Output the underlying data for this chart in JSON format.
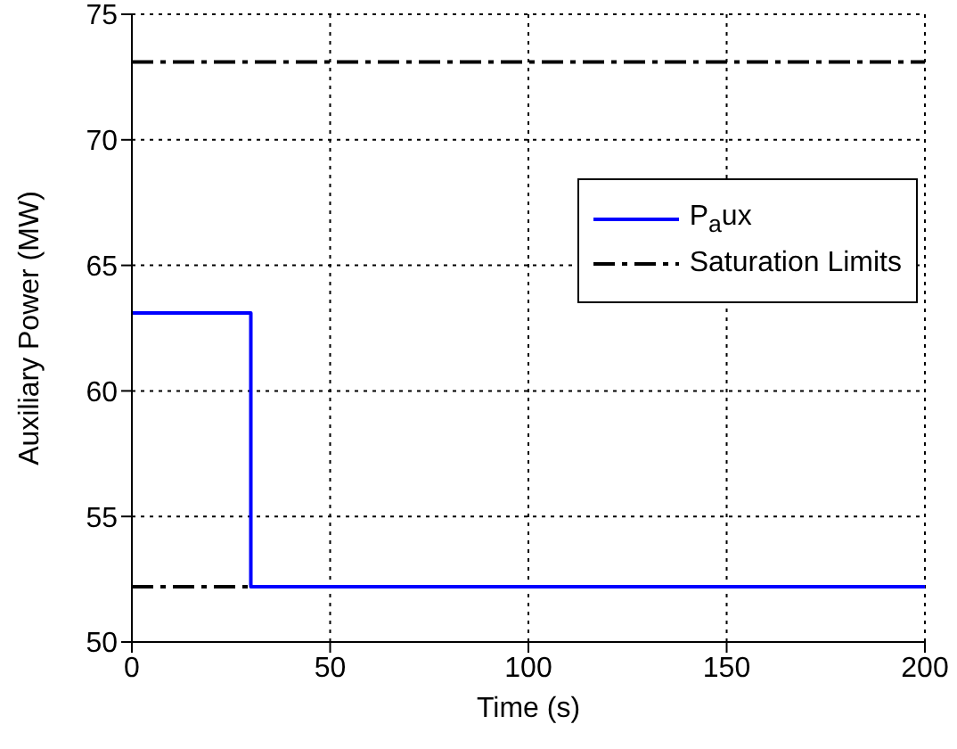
{
  "chart_data": {
    "type": "line",
    "xlabel": "Time (s)",
    "ylabel": "Auxiliary Power (MW)",
    "xlim": [
      0,
      200
    ],
    "xticks": [
      0,
      50,
      100,
      150,
      200
    ],
    "ylim": [
      50,
      75
    ],
    "yticks": [
      50,
      55,
      60,
      65,
      70,
      75
    ],
    "grid": true,
    "legend": "top right",
    "marker": "none",
    "series": [
      {
        "name": "P$_{a}$ux",
        "color": "#0000ff",
        "x": [
          0,
          30,
          30,
          200
        ],
        "values": [
          63.1,
          63.1,
          52.2,
          52.2
        ]
      }
    ],
    "ref_lines": [
      {
        "axis": "y",
        "value": 73.1,
        "label": "Saturation Limits",
        "color": "#000000",
        "line_style": "dashed"
      },
      {
        "axis": "y",
        "value": 52.2,
        "label": null,
        "color": "#000000",
        "line_style": "dashed"
      }
    ]
  }
}
